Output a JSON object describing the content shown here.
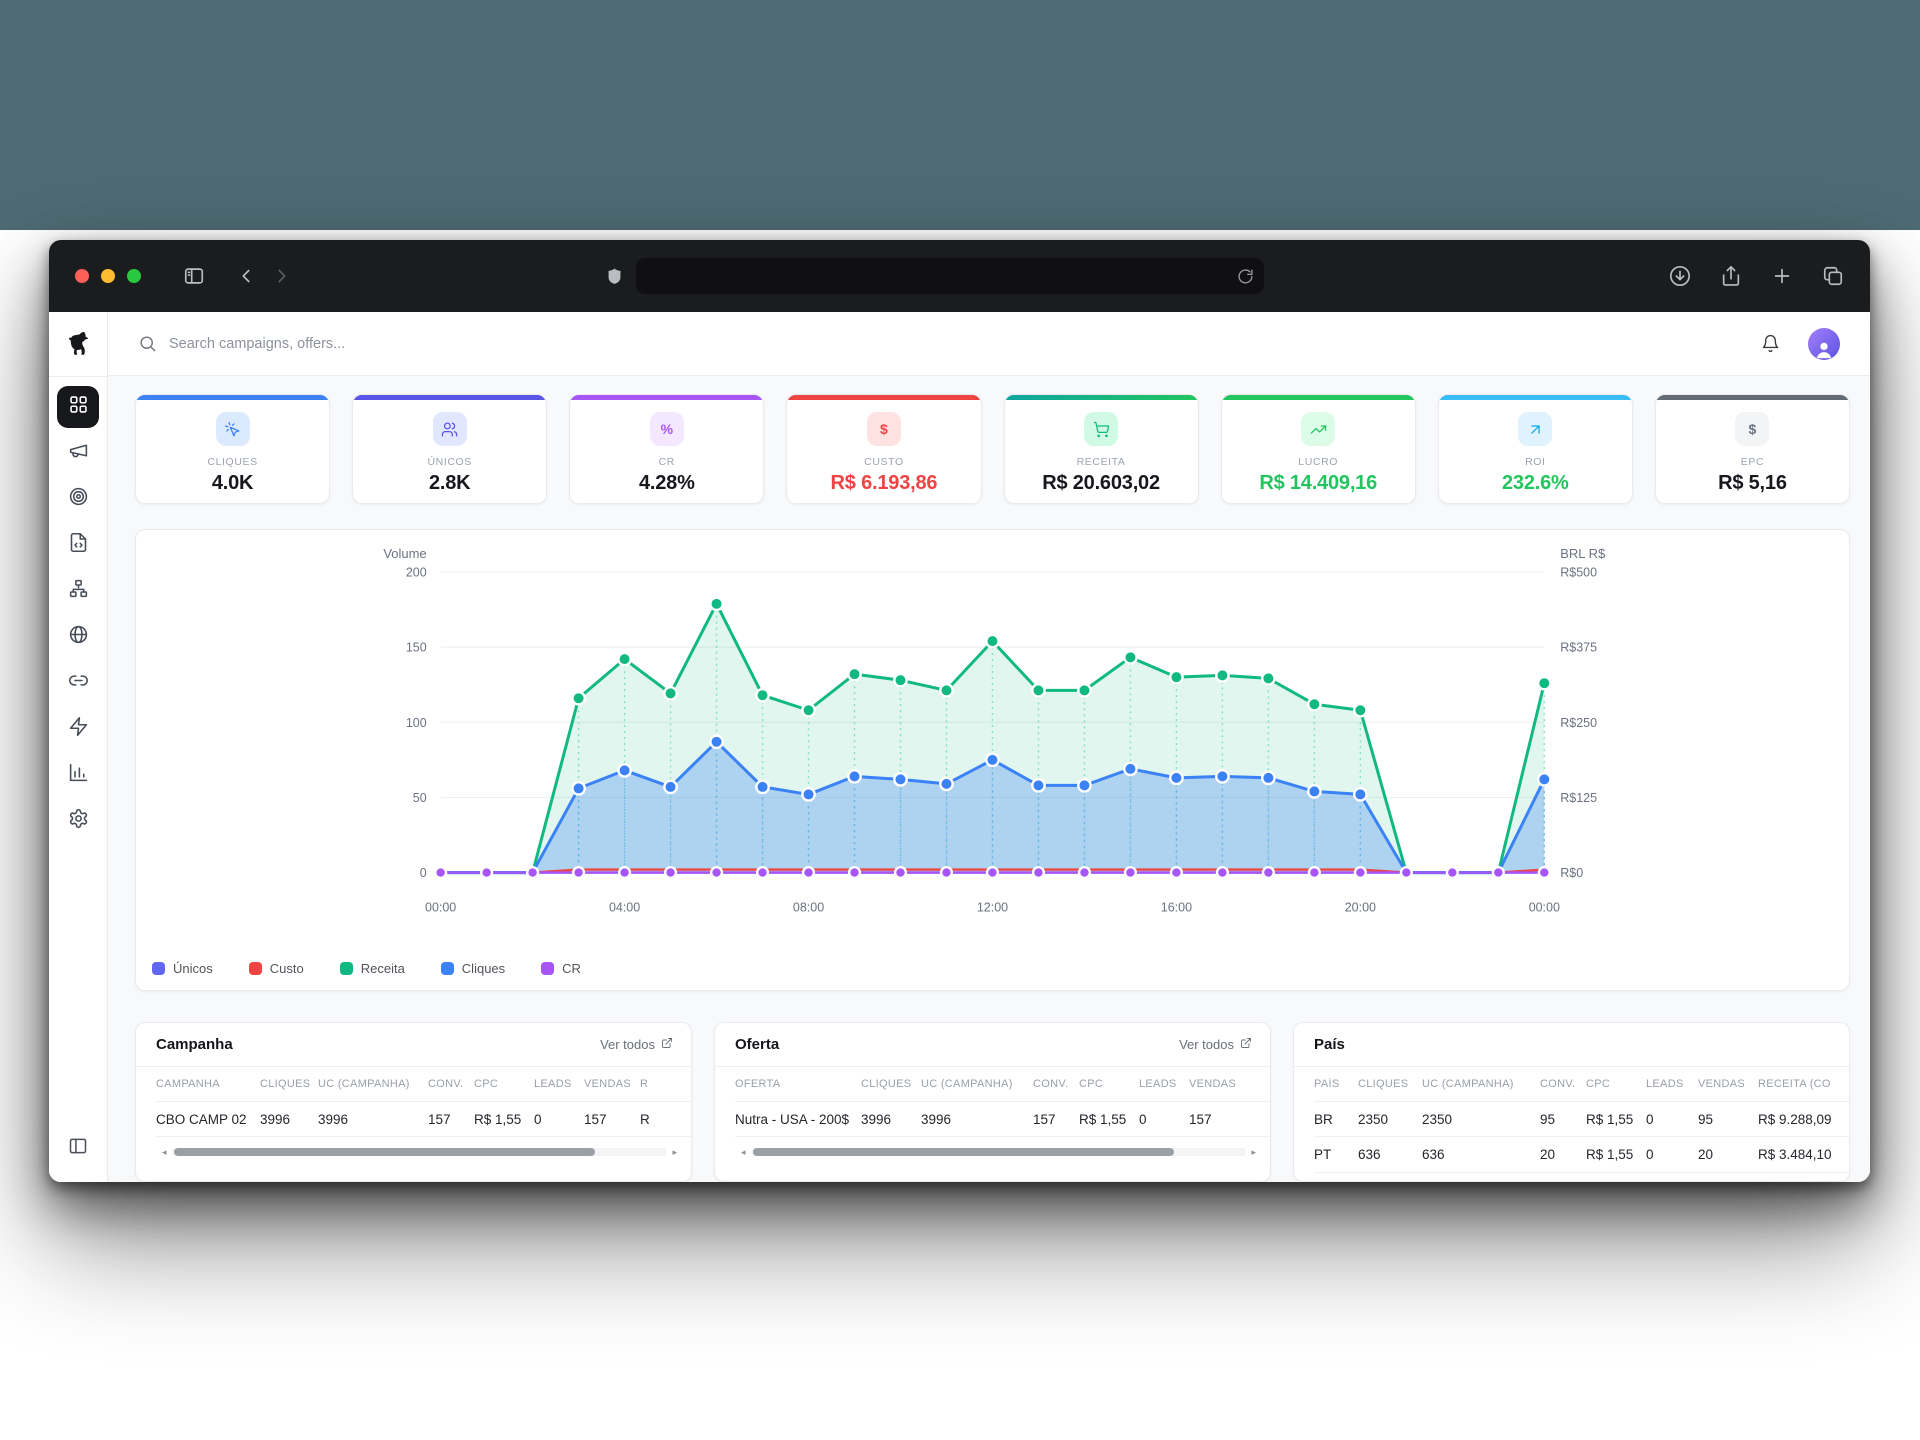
{
  "browser": {
    "url_value": "",
    "toolbar_icons": [
      "sidebar-toggle",
      "back",
      "forward",
      "shield",
      "reload",
      "download",
      "share",
      "new-tab",
      "tabs-overview"
    ]
  },
  "app": {
    "search": {
      "placeholder": "Search campaigns, offers..."
    },
    "header_icons": [
      "bell",
      "avatar"
    ],
    "sidebar": {
      "logo": "dog-logo",
      "items": [
        {
          "icon": "layout-grid",
          "name": "dashboard",
          "active": true
        },
        {
          "icon": "megaphone",
          "name": "campaigns",
          "active": false
        },
        {
          "icon": "target",
          "name": "offers",
          "active": false
        },
        {
          "icon": "file-code",
          "name": "landing-pages",
          "active": false
        },
        {
          "icon": "sitemap",
          "name": "flows",
          "active": false
        },
        {
          "icon": "globe",
          "name": "domains",
          "active": false
        },
        {
          "icon": "link",
          "name": "links",
          "active": false
        },
        {
          "icon": "zap",
          "name": "automation",
          "active": false
        },
        {
          "icon": "bar-chart",
          "name": "reports",
          "active": false
        },
        {
          "icon": "gear",
          "name": "settings",
          "active": false
        }
      ],
      "collapse_icon": "panel-left"
    },
    "stats": [
      {
        "label": "CLIQUES",
        "value": "4.0K",
        "accent": "#3b82f6",
        "chip_bg": "#dbeafe",
        "icon": "cursor-click",
        "icon_color": "#3b82f6",
        "value_color": "#16181d"
      },
      {
        "label": "ÚNICOS",
        "value": "2.8K",
        "accent": "#5b54e8",
        "chip_bg": "#e0e7ff",
        "icon": "users",
        "icon_color": "#5b54e8",
        "value_color": "#16181d"
      },
      {
        "label": "CR",
        "value": "4.28%",
        "accent": "#a855f7",
        "chip_bg": "#f3e8ff",
        "icon": "percent",
        "icon_color": "#a855f7",
        "value_color": "#16181d"
      },
      {
        "label": "CUSTO",
        "value": "R$ 6.193,86",
        "accent": "#ef4444",
        "chip_bg": "#fee2e2",
        "icon": "dollar",
        "icon_color": "#ef4444",
        "value_color": "#ef4444"
      },
      {
        "label": "RECEITA",
        "value": "R$ 20.603,02",
        "accent": "linear-gradient(90deg,#0ea5a0,#22c55e)",
        "chip_bg": "#d1fae5",
        "icon": "cart",
        "icon_color": "#10b981",
        "value_color": "#16181d"
      },
      {
        "label": "LUCRO",
        "value": "R$ 14.409,16",
        "accent": "#22c55e",
        "chip_bg": "#dcfce7",
        "icon": "trending-up",
        "icon_color": "#22c55e",
        "value_color": "#22c55e"
      },
      {
        "label": "ROI",
        "value": "232.6%",
        "accent": "#38bdf8",
        "chip_bg": "#e0f2fe",
        "icon": "arrow-up-right",
        "icon_color": "#0ea5e9",
        "value_color": "#22c55e"
      },
      {
        "label": "EPC",
        "value": "R$ 5,16",
        "accent": "#636b76",
        "chip_bg": "#f3f4f6",
        "icon": "dollar",
        "icon_color": "#6b7280",
        "value_color": "#16181d"
      }
    ]
  },
  "chart_data": {
    "type": "line",
    "x_description": "hourly points from 00:00 to 00:00 next day (25 points)",
    "x_tick_labels": [
      "00:00",
      "04:00",
      "08:00",
      "12:00",
      "16:00",
      "20:00",
      "00:00"
    ],
    "x_tick_indices": [
      0,
      4,
      8,
      12,
      16,
      20,
      24
    ],
    "left_axis": {
      "label": "Volume",
      "ticks": [
        "0",
        "50",
        "100",
        "150",
        "200"
      ],
      "range": [
        0,
        200
      ]
    },
    "right_axis": {
      "label": "BRL R$",
      "ticks": [
        "R$0",
        "R$125",
        "R$250",
        "R$375",
        "R$500"
      ],
      "range": [
        0,
        500
      ]
    },
    "series": [
      {
        "name": "Únicos",
        "color": "#6366f1",
        "axis": "left",
        "values": [
          0,
          0,
          0,
          0,
          0,
          0,
          0,
          0,
          0,
          0,
          0,
          0,
          0,
          0,
          0,
          0,
          0,
          0,
          0,
          0,
          0,
          0,
          0,
          0,
          0
        ]
      },
      {
        "name": "Custo",
        "color": "#ef4444",
        "axis": "left",
        "values": [
          0,
          0,
          0,
          2,
          2,
          2,
          2,
          2,
          2,
          2,
          2,
          2,
          2,
          2,
          2,
          2,
          2,
          2,
          2,
          2,
          2,
          0,
          0,
          0,
          2
        ]
      },
      {
        "name": "Receita",
        "color": "#10b981",
        "axis": "right",
        "values": [
          0,
          0,
          0,
          290,
          355,
          298,
          447,
          295,
          270,
          330,
          320,
          303,
          385,
          303,
          303,
          358,
          325,
          328,
          323,
          280,
          270,
          0,
          0,
          0,
          315
        ]
      },
      {
        "name": "Cliques",
        "color": "#3b82f6",
        "axis": "left",
        "values": [
          0,
          0,
          0,
          56,
          68,
          57,
          87,
          57,
          52,
          64,
          62,
          59,
          75,
          58,
          58,
          69,
          63,
          64,
          63,
          54,
          52,
          0,
          0,
          0,
          62
        ]
      },
      {
        "name": "CR",
        "color": "#a855f7",
        "axis": "left",
        "values": [
          0,
          0,
          0,
          0,
          0,
          0,
          0,
          0,
          0,
          0,
          0,
          0,
          0,
          0,
          0,
          0,
          0,
          0,
          0,
          0,
          0,
          0,
          0,
          0,
          0
        ]
      }
    ],
    "legend": [
      "Únicos",
      "Custo",
      "Receita",
      "Cliques",
      "CR"
    ],
    "legend_position": "bottom-left",
    "grid": true
  },
  "tables": [
    {
      "title": "Campanha",
      "link": "Ver todos",
      "columns": [
        "CAMPANHA",
        "CLIQUES",
        "UC (CAMPANHA)",
        "CONV.",
        "CPC",
        "LEADS",
        "VENDAS",
        "R"
      ],
      "rows": [
        [
          "CBO CAMP 02",
          "3996",
          "3996",
          "157",
          "R$ 1,55",
          "0",
          "157",
          "R"
        ]
      ],
      "scrollbar": true
    },
    {
      "title": "Oferta",
      "link": "Ver todos",
      "columns": [
        "OFERTA",
        "CLIQUES",
        "UC (CAMPANHA)",
        "CONV.",
        "CPC",
        "LEADS",
        "VENDAS"
      ],
      "rows": [
        [
          "Nutra - USA - 200$",
          "3996",
          "3996",
          "157",
          "R$ 1,55",
          "0",
          "157"
        ]
      ],
      "scrollbar": true
    },
    {
      "title": "País",
      "link": null,
      "columns": [
        "PAÍS",
        "CLIQUES",
        "UC (CAMPANHA)",
        "CONV.",
        "CPC",
        "LEADS",
        "VENDAS",
        "RECEITA (CO"
      ],
      "rows": [
        [
          "BR",
          "2350",
          "2350",
          "95",
          "R$ 1,55",
          "0",
          "95",
          "R$ 9.288,09"
        ],
        [
          "PT",
          "636",
          "636",
          "20",
          "R$ 1,55",
          "0",
          "20",
          "R$ 3.484,10"
        ]
      ],
      "scrollbar": false
    }
  ]
}
